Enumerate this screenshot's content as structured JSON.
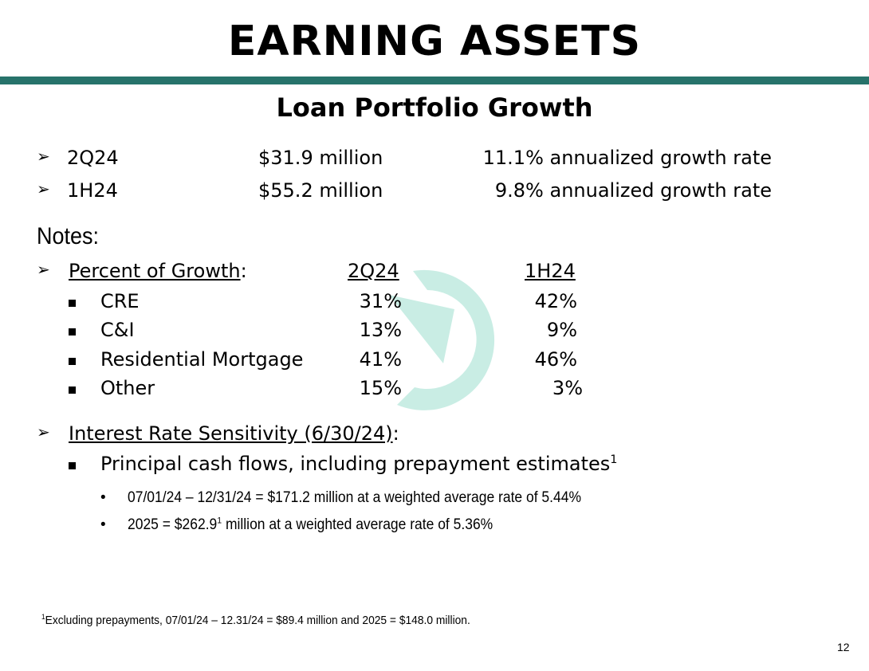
{
  "slide": {
    "title": "EARNING ASSETS",
    "subtitle": "Loan Portfolio Growth",
    "accent_color": "#27736b",
    "watermark_color": "#c9ede4",
    "watermark_icon": "circular-arrow-logo-icon"
  },
  "highlights": [
    {
      "period": "2Q24",
      "amount": "$31.9 million",
      "rate": "11.1% annualized growth rate"
    },
    {
      "period": "1H24",
      "amount": "$55.2 million",
      "rate": "9.8% annualized growth rate"
    }
  ],
  "notes": {
    "heading": "Notes:",
    "percent_of_growth": {
      "label": "Percent of Growth",
      "colon": ":",
      "col1": "2Q24",
      "col2": "1H24",
      "rows": [
        {
          "name": "CRE",
          "v1": "31%",
          "v2": "42%"
        },
        {
          "name": "C&I",
          "v1": "13%",
          "v2": "9%"
        },
        {
          "name": "Residential Mortgage",
          "v1": "41%",
          "v2": "46%"
        },
        {
          "name": "Other",
          "v1": "15%",
          "v2": "3%"
        }
      ]
    },
    "interest_rate": {
      "label": "Interest Rate Sensitivity (6/30/24)",
      "colon": ":",
      "principal": "Principal cash flows, including prepayment estimates",
      "principal_sup": "1",
      "bullets": [
        {
          "pre": "07/01/24 – 12/31/24 = $171.2 million at a weighted average rate of 5.44%",
          "sup": "",
          "post": ""
        },
        {
          "pre": "2025 = $262.9",
          "sup": "1",
          "post": " million at a weighted average rate of 5.36%"
        }
      ]
    }
  },
  "footnote": {
    "sup": "1",
    "text": "Excluding prepayments, 07/01/24 – 12.31/24 = $89.4 million and 2025 = $148.0 million."
  },
  "page_number": "12"
}
